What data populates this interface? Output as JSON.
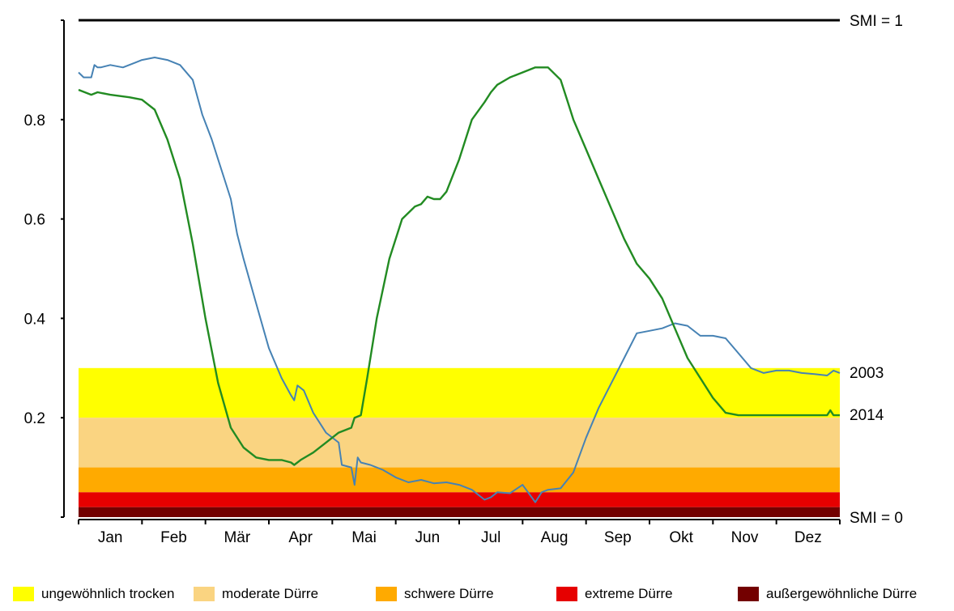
{
  "chart_data": {
    "type": "line",
    "title": "",
    "xlabel": "",
    "ylabel": "",
    "ylim": [
      0,
      1
    ],
    "yticks": [
      0.2,
      0.4,
      0.6,
      0.8
    ],
    "ytick_labels": [
      "0.2",
      "0.4",
      "0.6",
      "0.8"
    ],
    "months": [
      "Jan",
      "Feb",
      "Mär",
      "Apr",
      "Mai",
      "Jun",
      "Jul",
      "Aug",
      "Sep",
      "Okt",
      "Nov",
      "Dez"
    ],
    "reference_lines": [
      {
        "label": "SMI = 1",
        "value": 1.0
      },
      {
        "label": "SMI = 0",
        "value": 0.0
      }
    ],
    "bands": [
      {
        "name": "ungewöhnlich trocken",
        "from": 0.2,
        "to": 0.3,
        "color": "#ffff00"
      },
      {
        "name": "moderate Dürre",
        "from": 0.1,
        "to": 0.2,
        "color": "#fad481"
      },
      {
        "name": "schwere Dürre",
        "from": 0.05,
        "to": 0.1,
        "color": "#ffaa00"
      },
      {
        "name": "extreme Dürre",
        "from": 0.02,
        "to": 0.05,
        "color": "#e60000"
      },
      {
        "name": "außergewöhnliche Dürre",
        "from": 0.0,
        "to": 0.02,
        "color": "#730000"
      }
    ],
    "series": [
      {
        "name": "2003",
        "color": "#4682b4",
        "x": [
          0,
          0.08,
          0.2,
          0.25,
          0.3,
          0.35,
          0.5,
          0.7,
          0.9,
          1.0,
          1.2,
          1.4,
          1.6,
          1.8,
          1.95,
          2.1,
          2.2,
          2.3,
          2.4,
          2.5,
          2.6,
          2.8,
          3.0,
          3.2,
          3.35,
          3.4,
          3.45,
          3.55,
          3.7,
          3.9,
          4.1,
          4.15,
          4.3,
          4.35,
          4.4,
          4.45,
          4.6,
          4.8,
          5.0,
          5.2,
          5.4,
          5.6,
          5.8,
          6.0,
          6.2,
          6.4,
          6.5,
          6.6,
          6.8,
          7.0,
          7.2,
          7.3,
          7.4,
          7.6,
          7.8,
          8.0,
          8.2,
          8.4,
          8.6,
          8.8,
          9.0,
          9.2,
          9.4,
          9.6,
          9.8,
          10.0,
          10.2,
          10.4,
          10.6,
          10.8,
          11.0,
          11.2,
          11.4,
          11.6,
          11.8,
          11.9,
          12.0
        ],
        "values": [
          0.895,
          0.885,
          0.885,
          0.91,
          0.905,
          0.905,
          0.91,
          0.905,
          0.915,
          0.92,
          0.925,
          0.92,
          0.91,
          0.88,
          0.81,
          0.76,
          0.72,
          0.68,
          0.64,
          0.57,
          0.52,
          0.43,
          0.34,
          0.28,
          0.245,
          0.235,
          0.265,
          0.255,
          0.21,
          0.17,
          0.15,
          0.105,
          0.1,
          0.065,
          0.12,
          0.11,
          0.105,
          0.095,
          0.08,
          0.07,
          0.075,
          0.068,
          0.07,
          0.065,
          0.055,
          0.035,
          0.04,
          0.05,
          0.048,
          0.065,
          0.03,
          0.05,
          0.055,
          0.058,
          0.09,
          0.16,
          0.22,
          0.27,
          0.32,
          0.37,
          0.375,
          0.38,
          0.39,
          0.385,
          0.365,
          0.365,
          0.36,
          0.33,
          0.3,
          0.29,
          0.295,
          0.295,
          0.29,
          0.288,
          0.285,
          0.295,
          0.29
        ]
      },
      {
        "name": "2014",
        "color": "#228b22",
        "x": [
          0,
          0.2,
          0.3,
          0.5,
          0.8,
          1.0,
          1.2,
          1.4,
          1.6,
          1.8,
          2.0,
          2.2,
          2.4,
          2.6,
          2.8,
          3.0,
          3.2,
          3.35,
          3.4,
          3.5,
          3.7,
          3.9,
          4.1,
          4.3,
          4.35,
          4.45,
          4.55,
          4.7,
          4.9,
          5.1,
          5.3,
          5.4,
          5.5,
          5.6,
          5.7,
          5.8,
          6.0,
          6.2,
          6.4,
          6.5,
          6.6,
          6.8,
          7.0,
          7.2,
          7.4,
          7.6,
          7.7,
          7.8,
          8.0,
          8.2,
          8.4,
          8.6,
          8.8,
          9.0,
          9.2,
          9.4,
          9.6,
          9.8,
          10.0,
          10.2,
          10.4,
          10.6,
          10.8,
          11.0,
          11.2,
          11.4,
          11.6,
          11.7,
          11.8,
          11.85,
          11.9,
          12.0
        ],
        "values": [
          0.86,
          0.85,
          0.855,
          0.85,
          0.845,
          0.84,
          0.82,
          0.76,
          0.68,
          0.55,
          0.4,
          0.27,
          0.18,
          0.14,
          0.12,
          0.115,
          0.115,
          0.11,
          0.105,
          0.115,
          0.13,
          0.15,
          0.17,
          0.18,
          0.2,
          0.205,
          0.28,
          0.4,
          0.52,
          0.6,
          0.625,
          0.63,
          0.645,
          0.64,
          0.64,
          0.655,
          0.72,
          0.8,
          0.835,
          0.855,
          0.87,
          0.885,
          0.895,
          0.905,
          0.905,
          0.88,
          0.84,
          0.8,
          0.74,
          0.68,
          0.62,
          0.56,
          0.51,
          0.48,
          0.44,
          0.38,
          0.32,
          0.28,
          0.24,
          0.21,
          0.205,
          0.205,
          0.205,
          0.205,
          0.205,
          0.205,
          0.205,
          0.205,
          0.205,
          0.215,
          0.205,
          0.205
        ]
      }
    ],
    "series_end_labels": [
      "2003",
      "2014"
    ]
  }
}
